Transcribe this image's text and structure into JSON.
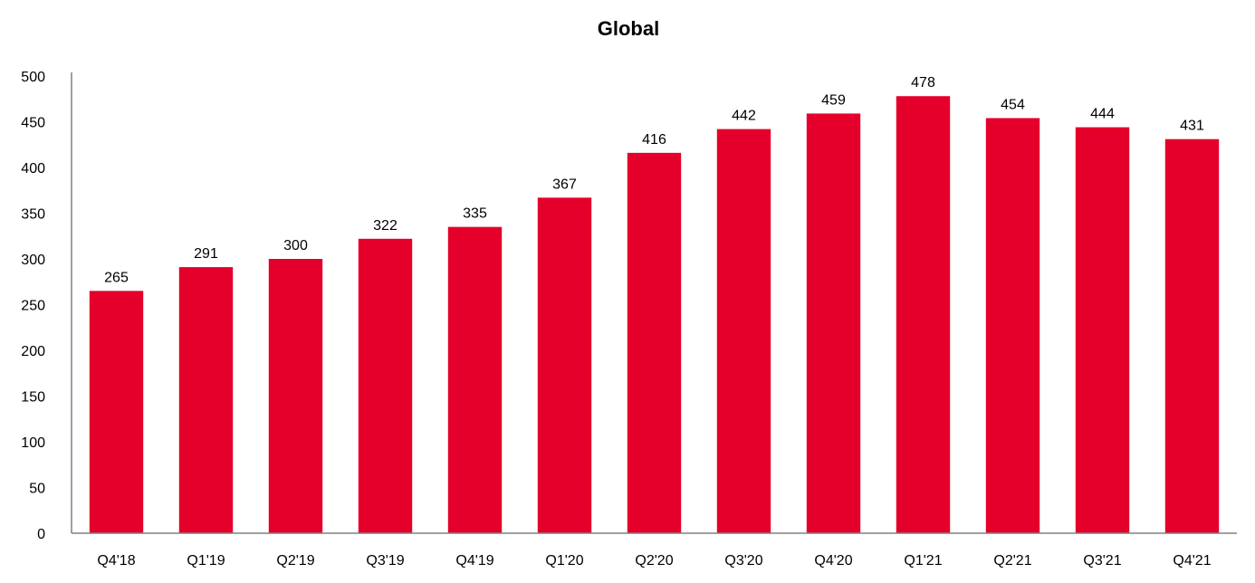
{
  "chart_data": {
    "type": "bar",
    "title": "Global",
    "xlabel": "",
    "ylabel": "",
    "categories": [
      "Q4'18",
      "Q1'19",
      "Q2'19",
      "Q3'19",
      "Q4'19",
      "Q1'20",
      "Q2'20",
      "Q3'20",
      "Q4'20",
      "Q1'21",
      "Q2'21",
      "Q3'21",
      "Q4'21"
    ],
    "values": [
      265,
      291,
      300,
      322,
      335,
      367,
      416,
      442,
      459,
      478,
      454,
      444,
      431
    ],
    "ylim": [
      0,
      500
    ],
    "yticks": [
      0,
      50,
      100,
      150,
      200,
      250,
      300,
      350,
      400,
      450,
      500
    ],
    "grid": false,
    "legend": "none",
    "bar_color": "#E4002B",
    "axis_color": "#808080"
  }
}
